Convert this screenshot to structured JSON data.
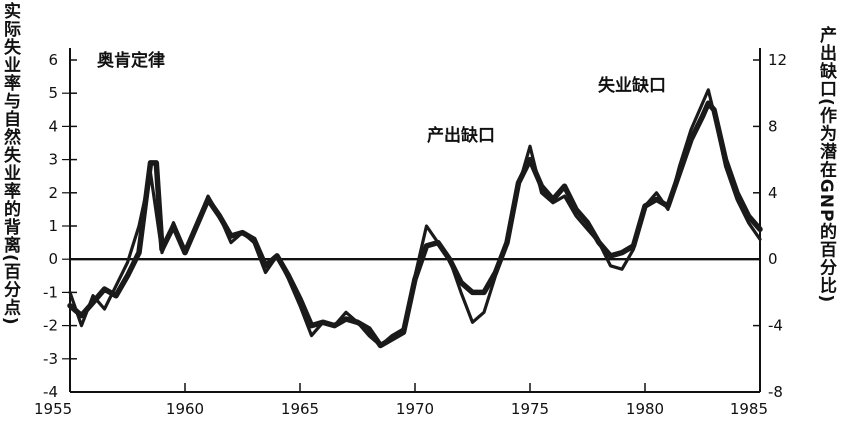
{
  "chart_data": {
    "type": "line",
    "title": "",
    "xlabel": "",
    "ylabel_left": "实际失业率与自然失业率的背离(百分点)",
    "ylabel_right": "产出缺口(作为潜在GNP的百分比)",
    "legend_label": "奥肯定律",
    "annotations": [
      "产出缺口",
      "失业缺口"
    ],
    "xlim": [
      1955,
      1985
    ],
    "ylim_left": [
      -4,
      6
    ],
    "ylim_right": [
      -8,
      12
    ],
    "x_ticks": [
      "1955",
      "1960",
      "1965",
      "1970",
      "1975",
      "1980",
      "1985"
    ],
    "y_left_ticks": [
      "-4",
      "-3",
      "-2",
      "-1",
      "0",
      "1",
      "2",
      "3",
      "4",
      "5",
      "6"
    ],
    "y_right_ticks": [
      "-8",
      "-4",
      "0",
      "4",
      "8",
      "12"
    ],
    "series": [
      {
        "name": "失业缺口",
        "axis": "left",
        "x": [
          1955.0,
          1955.5,
          1956.0,
          1956.5,
          1957.0,
          1957.5,
          1958.0,
          1958.5,
          1958.75,
          1959.0,
          1959.5,
          1960.0,
          1960.5,
          1961.0,
          1961.5,
          1962.0,
          1962.5,
          1963.0,
          1963.5,
          1964.0,
          1964.5,
          1965.0,
          1965.5,
          1966.0,
          1966.5,
          1967.0,
          1967.5,
          1968.0,
          1968.5,
          1969.0,
          1969.5,
          1970.0,
          1970.5,
          1971.0,
          1971.5,
          1972.0,
          1972.5,
          1973.0,
          1973.5,
          1974.0,
          1974.5,
          1975.0,
          1975.5,
          1976.0,
          1976.5,
          1977.0,
          1977.5,
          1978.0,
          1978.5,
          1979.0,
          1979.5,
          1980.0,
          1980.5,
          1981.0,
          1981.5,
          1982.0,
          1982.5,
          1982.75,
          1983.0,
          1983.5,
          1984.0,
          1984.5,
          1985.0
        ],
        "y": [
          -1.4,
          -1.7,
          -1.3,
          -0.9,
          -1.1,
          -0.5,
          0.2,
          2.9,
          2.9,
          0.3,
          1.0,
          0.2,
          1.0,
          1.8,
          1.3,
          0.7,
          0.8,
          0.6,
          -0.2,
          0.1,
          -0.5,
          -1.2,
          -2.0,
          -1.9,
          -2.0,
          -1.8,
          -1.9,
          -2.1,
          -2.6,
          -2.4,
          -2.2,
          -0.6,
          0.4,
          0.5,
          0.0,
          -0.7,
          -1.0,
          -1.0,
          -0.4,
          0.5,
          2.3,
          3.0,
          2.2,
          1.8,
          2.2,
          1.5,
          1.1,
          0.5,
          0.1,
          0.2,
          0.4,
          1.6,
          1.8,
          1.6,
          2.6,
          3.6,
          4.3,
          4.7,
          4.5,
          3.0,
          2.0,
          1.3,
          0.9
        ]
      },
      {
        "name": "产出缺口",
        "axis": "right",
        "x": [
          1955.0,
          1955.5,
          1956.0,
          1956.5,
          1957.0,
          1957.5,
          1958.0,
          1958.5,
          1959.0,
          1959.5,
          1960.0,
          1960.5,
          1961.0,
          1961.5,
          1962.0,
          1962.5,
          1963.0,
          1963.5,
          1964.0,
          1964.5,
          1965.0,
          1965.5,
          1966.0,
          1966.5,
          1967.0,
          1967.5,
          1968.0,
          1968.5,
          1969.0,
          1969.5,
          1970.0,
          1970.5,
          1971.0,
          1971.5,
          1972.0,
          1972.5,
          1973.0,
          1973.5,
          1974.0,
          1974.5,
          1975.0,
          1975.5,
          1976.0,
          1976.5,
          1977.0,
          1977.5,
          1978.0,
          1978.5,
          1979.0,
          1979.5,
          1980.0,
          1980.5,
          1981.0,
          1981.5,
          1982.0,
          1982.5,
          1982.75,
          1983.0,
          1983.5,
          1984.0,
          1984.5,
          1985.0
        ],
        "y": [
          -2.0,
          -4.0,
          -2.2,
          -3.0,
          -1.6,
          -0.2,
          2.0,
          5.2,
          0.4,
          2.2,
          0.4,
          2.0,
          3.8,
          2.6,
          1.0,
          1.6,
          1.0,
          -0.8,
          0.2,
          -1.2,
          -2.8,
          -4.6,
          -3.8,
          -4.0,
          -3.2,
          -3.8,
          -4.6,
          -5.2,
          -4.6,
          -4.2,
          -1.0,
          2.0,
          1.0,
          0.0,
          -2.0,
          -3.8,
          -3.2,
          -1.0,
          1.0,
          4.4,
          6.8,
          4.0,
          3.4,
          3.8,
          2.6,
          1.8,
          1.0,
          -0.4,
          -0.6,
          0.6,
          3.2,
          4.0,
          3.0,
          5.6,
          7.8,
          9.4,
          10.2,
          8.8,
          5.6,
          3.6,
          2.2,
          1.2
        ]
      }
    ],
    "colors": {
      "line": "#1a1a1a",
      "axis": "#111111",
      "background": "#ffffff"
    }
  }
}
